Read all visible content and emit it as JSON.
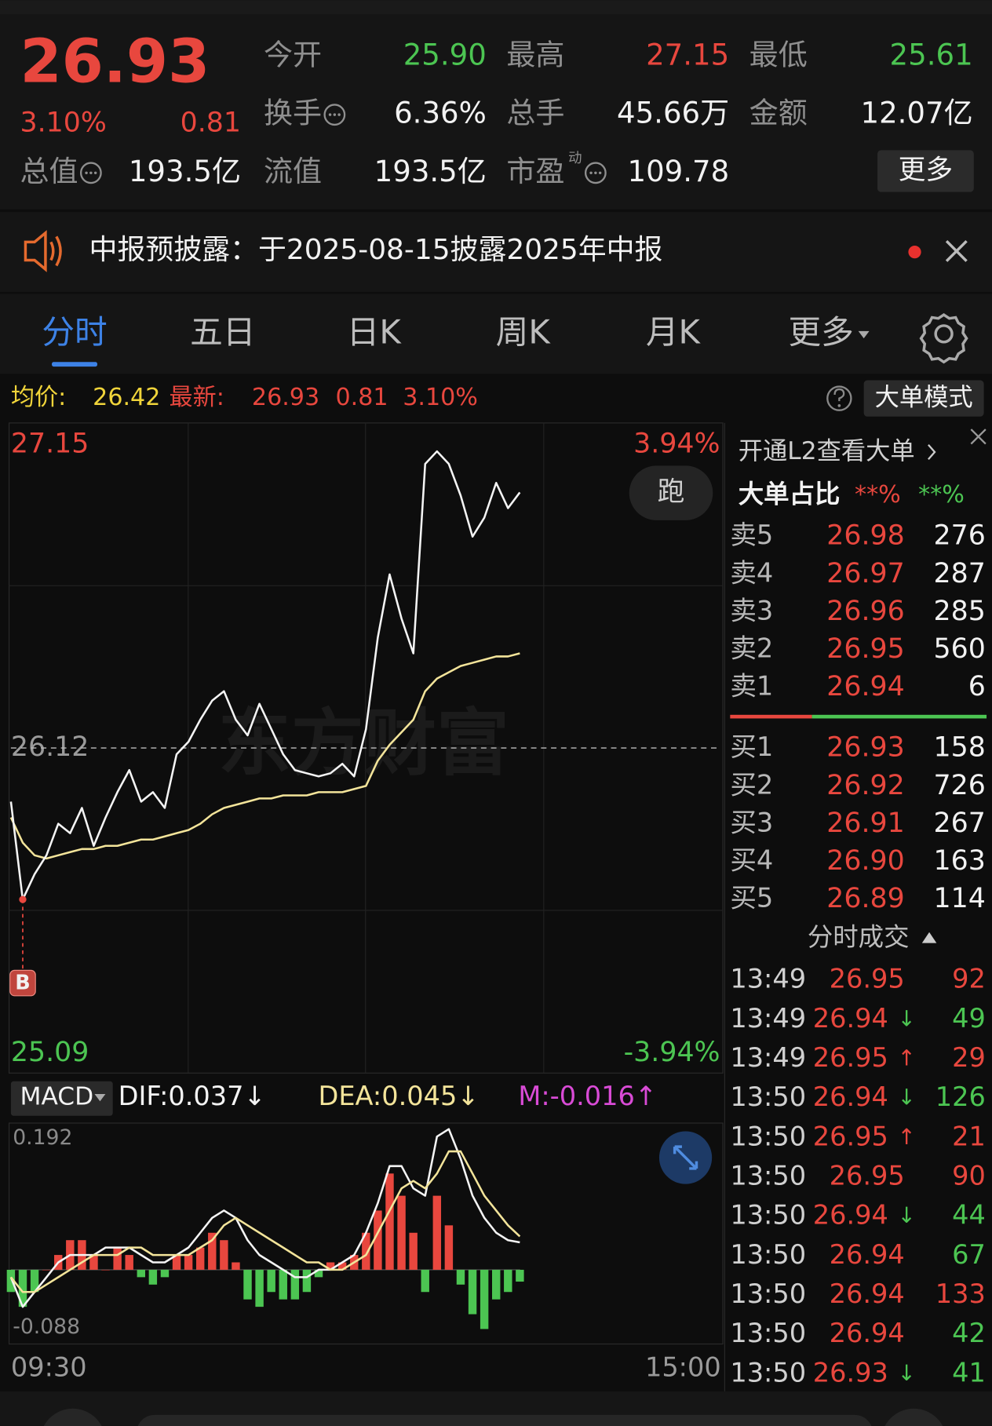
{
  "quote": {
    "price": "26.93",
    "change_pct": "3.10%",
    "change": "0.81",
    "more": "更多",
    "fields": [
      {
        "label": "今开",
        "value": "25.90",
        "color": "#4cc552"
      },
      {
        "label": "最高",
        "value": "27.15",
        "color": "#e8473e"
      },
      {
        "label": "最低",
        "value": "25.61",
        "color": "#4cc552"
      },
      {
        "label": "换手",
        "value": "6.36%",
        "color": "#f2f2f2",
        "info_icon": true
      },
      {
        "label": "总手",
        "value": "45.66万",
        "color": "#f2f2f2"
      },
      {
        "label": "金额",
        "value": "12.07亿",
        "color": "#f2f2f2"
      },
      {
        "label": "总值",
        "value": "193.5亿",
        "color": "#f2f2f2",
        "info_icon": true
      },
      {
        "label": "流值",
        "value": "193.5亿",
        "color": "#f2f2f2"
      },
      {
        "label": "市盈",
        "superscript": "动",
        "value": "109.78",
        "color": "#f2f2f2",
        "info_icon": true
      }
    ]
  },
  "notice": {
    "text": "中报预披露：于2025-08-15披露2025年中报"
  },
  "tabs": [
    "分时",
    "五日",
    "日K",
    "周K",
    "月K",
    "更多"
  ],
  "info": {
    "avg_label": "均价:",
    "avg": "26.42",
    "last_label": "最新:",
    "last": "26.93",
    "change": "0.81",
    "change_pct": "3.10%",
    "mode_button": "大单模式"
  },
  "markers": {
    "buy": "B",
    "run": "跑",
    "watermark": "东方财富",
    "indicator": "MACD"
  },
  "chart_data": [
    {
      "type": "line",
      "xlim": [
        0,
        240
      ],
      "xticks": [
        {
          "value": 0,
          "label": "09:30"
        },
        {
          "value": 240,
          "label": "15:00"
        }
      ],
      "ylim": [
        25.09,
        27.15
      ],
      "yticks": [
        25.09,
        26.12,
        27.15
      ],
      "pct_labels": [
        {
          "value": 27.15,
          "label": "3.94%"
        },
        {
          "value": 25.09,
          "label": "-3.94%"
        }
      ],
      "x": [
        0,
        4,
        8,
        12,
        16,
        20,
        24,
        28,
        32,
        36,
        40,
        44,
        48,
        52,
        56,
        60,
        64,
        68,
        72,
        76,
        80,
        84,
        88,
        92,
        96,
        100,
        104,
        108,
        112,
        116,
        120,
        124,
        128,
        132,
        136,
        140,
        144,
        148,
        152,
        156,
        160,
        164,
        168,
        172
      ],
      "series": [
        {
          "color": "#f4f4f4",
          "values": [
            25.95,
            25.64,
            25.72,
            25.78,
            25.88,
            25.85,
            25.93,
            25.81,
            25.9,
            25.98,
            26.05,
            25.95,
            25.98,
            25.93,
            26.1,
            26.14,
            26.21,
            26.27,
            26.3,
            26.21,
            26.16,
            26.26,
            26.18,
            26.1,
            26.05,
            26.04,
            26.03,
            26.04,
            26.07,
            26.03,
            26.18,
            26.47,
            26.67,
            26.53,
            26.42,
            27.02,
            27.06,
            27.02,
            26.92,
            26.79,
            26.85,
            26.96,
            26.88,
            26.93
          ]
        },
        {
          "color": "#f3e49a",
          "values": [
            25.9,
            25.82,
            25.78,
            25.77,
            25.78,
            25.79,
            25.8,
            25.8,
            25.81,
            25.81,
            25.82,
            25.83,
            25.83,
            25.84,
            25.85,
            25.86,
            25.88,
            25.91,
            25.93,
            25.94,
            25.95,
            25.96,
            25.96,
            25.97,
            25.97,
            25.97,
            25.98,
            25.98,
            25.98,
            25.99,
            26.0,
            26.08,
            26.13,
            26.17,
            26.21,
            26.3,
            26.34,
            26.36,
            26.38,
            26.39,
            26.4,
            26.41,
            26.41,
            26.42
          ]
        }
      ]
    },
    {
      "type": "macd",
      "xlim": [
        0,
        240
      ],
      "ylim": [
        -0.088,
        0.192
      ],
      "yticks": [
        -0.088,
        0.192
      ],
      "up_color": "#e8473e",
      "down_color": "#4cc552",
      "x": [
        0,
        4,
        8,
        12,
        16,
        20,
        24,
        28,
        32,
        36,
        40,
        44,
        48,
        52,
        56,
        60,
        64,
        68,
        72,
        76,
        80,
        84,
        88,
        92,
        96,
        100,
        104,
        108,
        112,
        116,
        120,
        124,
        128,
        132,
        136,
        140,
        144,
        148,
        152,
        156,
        160,
        164,
        168,
        172
      ],
      "series": [
        {
          "name": "DIF:0.037↓",
          "color": "#f4f4f4",
          "values": [
            -0.01,
            -0.05,
            -0.03,
            -0.01,
            0.01,
            0.02,
            0.02,
            0.02,
            0.03,
            0.03,
            0.03,
            0.02,
            0.01,
            0.01,
            0.02,
            0.03,
            0.05,
            0.07,
            0.08,
            0.07,
            0.04,
            0.02,
            0.01,
            0,
            -0.01,
            -0.01,
            0,
            0,
            0.01,
            0.02,
            0.05,
            0.09,
            0.14,
            0.14,
            0.11,
            0.1,
            0.18,
            0.19,
            0.15,
            0.1,
            0.07,
            0.05,
            0.04,
            0.037
          ]
        },
        {
          "name": "DEA:0.045↓",
          "color": "#f3e49a",
          "values": [
            -0.01,
            -0.03,
            -0.03,
            -0.02,
            -0.01,
            0,
            0.01,
            0.02,
            0.02,
            0.02,
            0.03,
            0.03,
            0.02,
            0.02,
            0.02,
            0.02,
            0.03,
            0.04,
            0.06,
            0.07,
            0.06,
            0.05,
            0.04,
            0.03,
            0.02,
            0.01,
            0.01,
            0,
            0,
            0.01,
            0.02,
            0.05,
            0.08,
            0.11,
            0.12,
            0.11,
            0.13,
            0.16,
            0.16,
            0.13,
            0.1,
            0.08,
            0.06,
            0.045
          ]
        },
        {
          "name": "M:-0.016↑",
          "color": "#d94bd6",
          "kind": "bar",
          "values": [
            -0.03,
            -0.05,
            -0.03,
            0,
            0.02,
            0.04,
            0.04,
            0.02,
            0,
            0.03,
            0.02,
            -0.01,
            -0.02,
            -0.01,
            0.02,
            0.02,
            0.03,
            0.05,
            0.04,
            0.01,
            -0.04,
            -0.05,
            -0.03,
            -0.04,
            -0.04,
            -0.03,
            -0.01,
            0.01,
            0.01,
            0.02,
            0.05,
            0.08,
            0.13,
            0.1,
            0.05,
            -0.03,
            0.1,
            0.06,
            -0.02,
            -0.06,
            -0.08,
            -0.04,
            -0.03,
            -0.016
          ]
        }
      ]
    }
  ],
  "order_book": {
    "title": "开通L2查看大单",
    "ratio_label": "大单占比",
    "ratio_up": "**%",
    "ratio_down": "**%",
    "asks": [
      {
        "label": "卖5",
        "price": "26.98",
        "volume": "276"
      },
      {
        "label": "卖4",
        "price": "26.97",
        "volume": "287"
      },
      {
        "label": "卖3",
        "price": "26.96",
        "volume": "285"
      },
      {
        "label": "卖2",
        "price": "26.95",
        "volume": "560"
      },
      {
        "label": "卖1",
        "price": "26.94",
        "volume": "6"
      }
    ],
    "bids": [
      {
        "label": "买1",
        "price": "26.93",
        "volume": "158"
      },
      {
        "label": "买2",
        "price": "26.92",
        "volume": "726"
      },
      {
        "label": "买3",
        "price": "26.91",
        "volume": "267"
      },
      {
        "label": "买4",
        "price": "26.90",
        "volume": "163"
      },
      {
        "label": "买5",
        "price": "26.89",
        "volume": "114"
      }
    ]
  },
  "trades": {
    "title": "分时成交",
    "rows": [
      {
        "time": "13:49",
        "price": "26.95",
        "volume": "92",
        "color": "#e8473e"
      },
      {
        "time": "13:49",
        "price": "26.94",
        "flag": "↓",
        "volume": "49",
        "color": "#4cc552"
      },
      {
        "time": "13:49",
        "price": "26.95",
        "flag": "↑",
        "volume": "29",
        "color": "#e8473e"
      },
      {
        "time": "13:50",
        "price": "26.94",
        "flag": "↓",
        "volume": "126",
        "color": "#4cc552"
      },
      {
        "time": "13:50",
        "price": "26.95",
        "flag": "↑",
        "volume": "21",
        "color": "#e8473e"
      },
      {
        "time": "13:50",
        "price": "26.95",
        "volume": "90",
        "color": "#e8473e"
      },
      {
        "time": "13:50",
        "price": "26.94",
        "flag": "↓",
        "volume": "44",
        "color": "#4cc552"
      },
      {
        "time": "13:50",
        "price": "26.94",
        "volume": "67",
        "color": "#4cc552"
      },
      {
        "time": "13:50",
        "price": "26.94",
        "volume": "133",
        "color": "#e8473e"
      },
      {
        "time": "13:50",
        "price": "26.94",
        "volume": "42",
        "color": "#4cc552"
      },
      {
        "time": "13:50",
        "price": "26.93",
        "flag": "↓",
        "volume": "41",
        "color": "#4cc552"
      }
    ]
  }
}
